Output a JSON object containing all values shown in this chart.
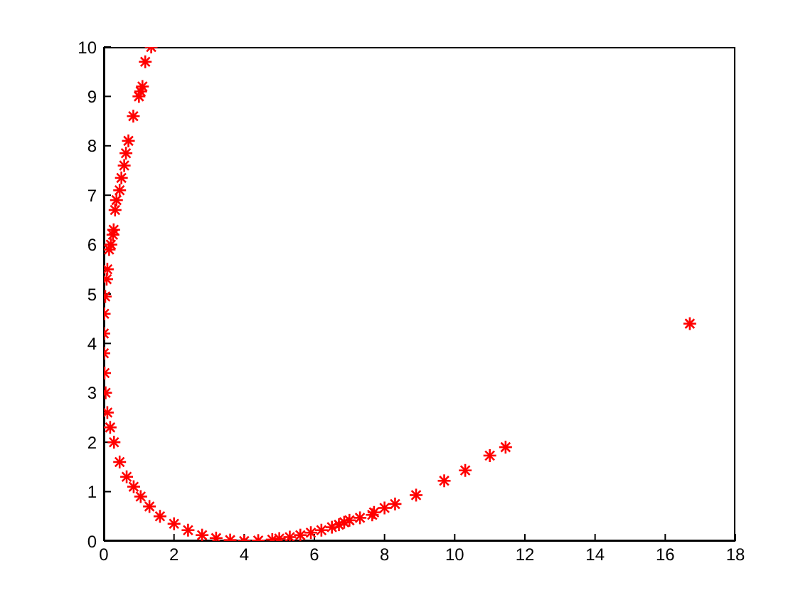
{
  "chart_data": {
    "type": "scatter",
    "xlim": [
      0,
      18
    ],
    "ylim": [
      0,
      10
    ],
    "xticks": [
      0,
      2,
      4,
      6,
      8,
      10,
      12,
      14,
      16,
      18
    ],
    "yticks": [
      0,
      1,
      2,
      3,
      4,
      5,
      6,
      7,
      8,
      9,
      10
    ],
    "grid": false,
    "marker": "cross",
    "series": [
      {
        "color": "#ff0000",
        "x": [
          1.35,
          1.18,
          1.1,
          1.05,
          1.0,
          0.84,
          0.7,
          0.63,
          0.58,
          0.5,
          0.45,
          0.36,
          0.32,
          0.28,
          0.26,
          0.2,
          0.15,
          0.1,
          0.08,
          0.04,
          0.01,
          0.0,
          0.0,
          0.02,
          0.05,
          0.1,
          0.18,
          0.29,
          0.45,
          0.65,
          0.85,
          1.05,
          1.3,
          1.6,
          2.0,
          2.4,
          2.8,
          3.2,
          3.6,
          4.0,
          4.4,
          4.8,
          5.0,
          5.3,
          5.6,
          5.9,
          6.2,
          6.5,
          6.7,
          6.85,
          7.0,
          7.3,
          7.65,
          7.7,
          8.0,
          8.3,
          8.9,
          9.7,
          10.3,
          11.0,
          11.45,
          16.7
        ],
        "values": [
          10,
          9.7,
          9.2,
          9.1,
          9.0,
          8.6,
          8.1,
          7.85,
          7.6,
          7.35,
          7.1,
          6.9,
          6.7,
          6.3,
          6.2,
          6.0,
          5.9,
          5.5,
          5.3,
          4.95,
          4.6,
          4.2,
          3.8,
          3.4,
          3.0,
          2.6,
          2.3,
          2.0,
          1.6,
          1.3,
          1.1,
          0.9,
          0.7,
          0.5,
          0.35,
          0.22,
          0.12,
          0.06,
          0.02,
          0.0,
          0.01,
          0.03,
          0.05,
          0.08,
          0.12,
          0.17,
          0.22,
          0.28,
          0.33,
          0.38,
          0.42,
          0.47,
          0.53,
          0.58,
          0.67,
          0.75,
          0.93,
          1.22,
          1.43,
          1.73,
          1.9,
          4.4
        ]
      }
    ]
  }
}
